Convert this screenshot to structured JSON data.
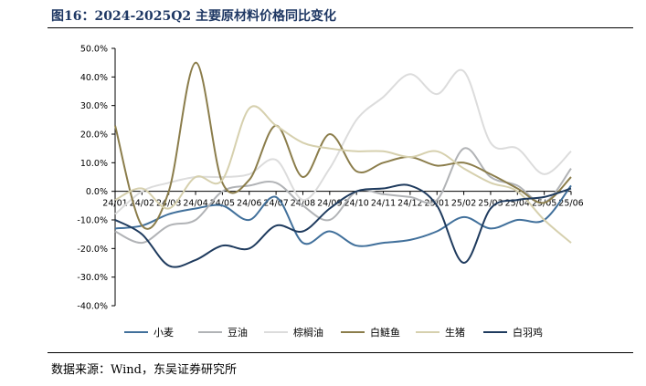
{
  "figure": {
    "title": "图16：2024-2025Q2 主要原材料价格同比变化",
    "source": "数据来源：Wind，东吴证券研究所"
  },
  "chart_data": {
    "type": "line",
    "x": [
      "24/01",
      "24/02",
      "24/03",
      "24/04",
      "24/05",
      "24/06",
      "24/07",
      "24/08",
      "24/09",
      "24/10",
      "24/11",
      "24/12",
      "25/01",
      "25/02",
      "25/03",
      "25/04",
      "25/05",
      "25/06"
    ],
    "ylim": [
      -40,
      50
    ],
    "yticks": [
      -40,
      -30,
      -20,
      -10,
      0,
      10,
      20,
      30,
      40,
      50
    ],
    "ytick_labels": [
      "-40.0%",
      "-30.0%",
      "-20.0%",
      "-10.0%",
      "0.0%",
      "10.0%",
      "20.0%",
      "30.0%",
      "40.0%",
      "50.0%"
    ],
    "legend_position": "bottom",
    "grid": false,
    "series": [
      {
        "name": "小麦",
        "color": "#41709b",
        "values": [
          -13,
          -12,
          -8,
          -6,
          -5,
          -10,
          -2,
          -18,
          -14,
          -19,
          -18,
          -17,
          -14,
          -9,
          -13,
          -10,
          -10,
          2
        ]
      },
      {
        "name": "豆油",
        "color": "#b1b3b6",
        "values": [
          -14,
          -18,
          -12,
          -10,
          0,
          2,
          3,
          -5,
          -10,
          0,
          -1,
          -2,
          -3,
          15,
          5,
          2,
          -4,
          8
        ]
      },
      {
        "name": "棕榈油",
        "color": "#dcdcdc",
        "values": [
          -8,
          0,
          3,
          5,
          5,
          6,
          11,
          -3,
          8,
          25,
          33,
          41,
          34,
          42,
          17,
          15,
          6,
          14
        ]
      },
      {
        "name": "白鲢鱼",
        "color": "#8b7d4b",
        "values": [
          23,
          -12,
          0,
          45,
          3,
          4,
          23,
          5,
          20,
          7,
          10,
          12,
          9,
          10,
          6,
          1,
          -4,
          5
        ]
      },
      {
        "name": "生猪",
        "color": "#d6d0ae",
        "values": [
          -3,
          1,
          -6,
          5,
          4,
          29,
          23,
          17,
          15,
          14,
          14,
          12,
          14,
          8,
          3,
          0,
          -10,
          -18
        ]
      },
      {
        "name": "白羽鸡",
        "color": "#1f3b5e",
        "values": [
          -10,
          -15,
          -26,
          -24,
          -19,
          -20,
          -12,
          -14,
          -6,
          0,
          1,
          2,
          -5,
          -25,
          -6,
          -3,
          -2,
          1
        ]
      }
    ]
  }
}
